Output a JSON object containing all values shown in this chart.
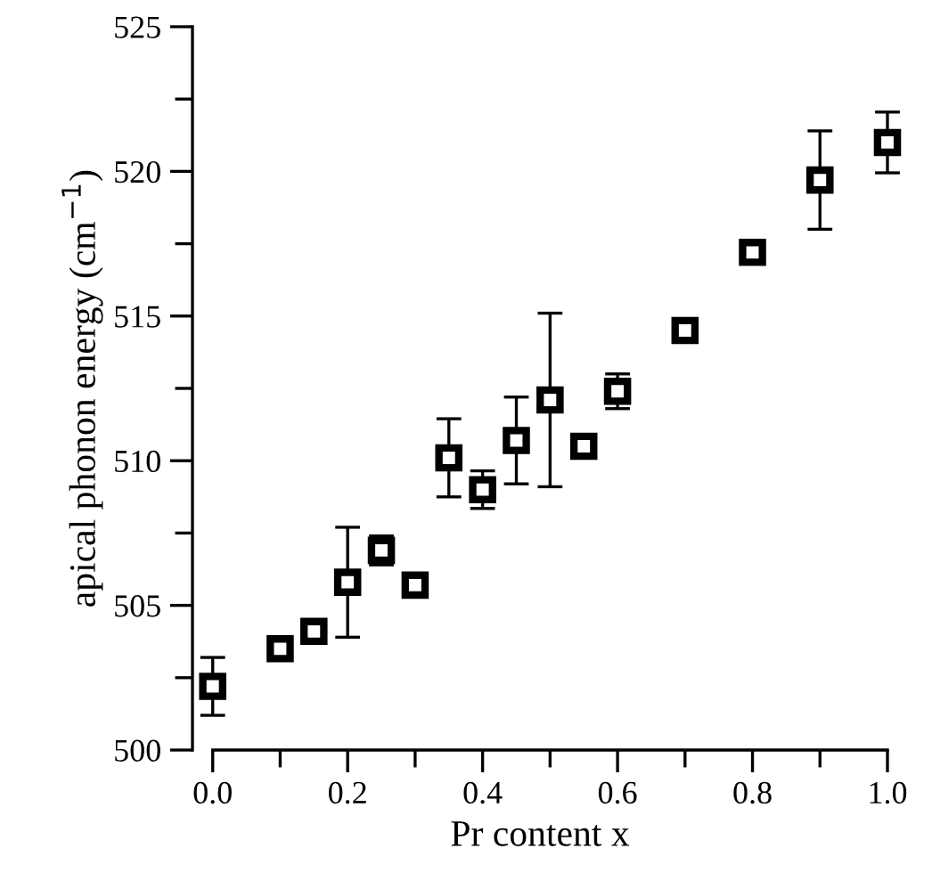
{
  "chart_data": {
    "type": "scatter",
    "xlabel": "Pr content x",
    "ylabel": "apical phonon energy (cm$^{−1}$)",
    "x": [
      0,
      0.1,
      0.15,
      0.2,
      0.25,
      0.3,
      0.35,
      0.4,
      0.45,
      0.5,
      0.55,
      0.6,
      0.7,
      0.8,
      0.9,
      1.0
    ],
    "series": [
      {
        "color": "#000000",
        "values": [
          502.2,
          503.5,
          504.1,
          505.8,
          506.9,
          505.7,
          510.1,
          509.0,
          510.7,
          512.1,
          510.5,
          512.4,
          514.5,
          517.2,
          519.7,
          521.0
        ],
        "errors": [
          1.0,
          0.2,
          null,
          1.9,
          0.5,
          null,
          1.35,
          0.65,
          1.5,
          3.0,
          0.4,
          0.6,
          0.15,
          0.1,
          1.7,
          1.05
        ]
      }
    ],
    "xlim": [
      -0.03,
      1.0
    ],
    "ylim": [
      500,
      525
    ],
    "xticks": [
      {
        "value": 0,
        "label": "0.0"
      },
      {
        "value": 0.1,
        "label": null
      },
      {
        "value": 0.2,
        "label": "0.2"
      },
      {
        "value": 0.3,
        "label": null
      },
      {
        "value": 0.4,
        "label": "0.4"
      },
      {
        "value": 0.5,
        "label": null
      },
      {
        "value": 0.6,
        "label": "0.6"
      },
      {
        "value": 0.7,
        "label": null
      },
      {
        "value": 0.8,
        "label": "0.8"
      },
      {
        "value": 0.9,
        "label": null
      },
      {
        "value": 1.0,
        "label": "1.0"
      }
    ],
    "yticks": [
      500,
      {
        "value": 502.5,
        "label": null
      },
      505,
      {
        "value": 507.5,
        "label": null
      },
      510,
      {
        "value": 512.5,
        "label": null
      },
      515,
      {
        "value": 517.5,
        "label": null
      },
      520,
      {
        "value": 522.5,
        "label": null
      },
      525
    ],
    "marker": "square",
    "grid": false,
    "legend": false
  }
}
